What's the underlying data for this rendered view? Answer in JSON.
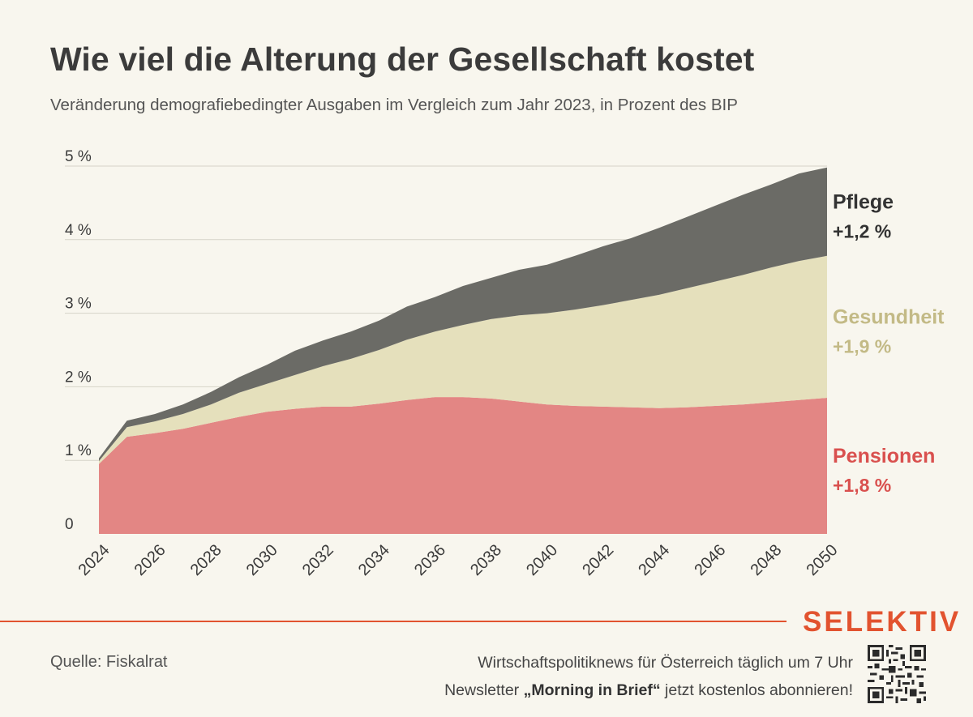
{
  "header": {
    "title": "Wie viel die Alterung der Gesellschaft kostet",
    "subtitle": "Veränderung demografiebedingter Ausgaben im Vergleich zum Jahr 2023, in Prozent des BIP"
  },
  "chart_data": {
    "type": "area",
    "stacked": true,
    "x": [
      2024,
      2025,
      2026,
      2027,
      2028,
      2029,
      2030,
      2031,
      2032,
      2033,
      2034,
      2035,
      2036,
      2037,
      2038,
      2039,
      2040,
      2041,
      2042,
      2043,
      2044,
      2045,
      2046,
      2047,
      2048,
      2049,
      2050
    ],
    "x_ticks": [
      "2024",
      "2026",
      "2028",
      "2030",
      "2032",
      "2034",
      "2036",
      "2038",
      "2040",
      "2042",
      "2044",
      "2046",
      "2048",
      "2050"
    ],
    "y_ticks": [
      "0",
      "1 %",
      "2 %",
      "3 %",
      "4 %",
      "5 %"
    ],
    "ylim": [
      0,
      5
    ],
    "grid": true,
    "series": [
      {
        "name": "Pensionen",
        "color": "#e38684",
        "values": [
          0.95,
          1.32,
          1.37,
          1.43,
          1.51,
          1.59,
          1.66,
          1.7,
          1.73,
          1.73,
          1.77,
          1.82,
          1.86,
          1.86,
          1.84,
          1.8,
          1.76,
          1.74,
          1.73,
          1.72,
          1.71,
          1.72,
          1.74,
          1.76,
          1.79,
          1.82,
          1.85
        ]
      },
      {
        "name": "Gesundheit",
        "color": "#e5e0bc",
        "values": [
          0.04,
          0.13,
          0.16,
          0.2,
          0.25,
          0.33,
          0.38,
          0.46,
          0.55,
          0.65,
          0.73,
          0.82,
          0.89,
          0.98,
          1.08,
          1.17,
          1.24,
          1.31,
          1.38,
          1.46,
          1.54,
          1.62,
          1.69,
          1.76,
          1.83,
          1.89,
          1.93
        ]
      },
      {
        "name": "Pflege",
        "color": "#6b6b66",
        "values": [
          0.04,
          0.09,
          0.1,
          0.13,
          0.17,
          0.21,
          0.26,
          0.33,
          0.35,
          0.37,
          0.4,
          0.45,
          0.47,
          0.53,
          0.56,
          0.62,
          0.66,
          0.73,
          0.8,
          0.84,
          0.91,
          0.97,
          1.03,
          1.09,
          1.13,
          1.19,
          1.2
        ]
      }
    ],
    "annotations": [
      {
        "series": "Pflege",
        "label": "Pflege",
        "value": "+1,2 %",
        "color": "#333333"
      },
      {
        "series": "Gesundheit",
        "label": "Gesundheit",
        "value": "+1,9 %",
        "color": "#c3ba86"
      },
      {
        "series": "Pensionen",
        "label": "Pensionen",
        "value": "+1,8 %",
        "color": "#d9504e"
      }
    ]
  },
  "footer": {
    "brand": "SELEKTIV",
    "source": "Quelle: Fiskalrat",
    "promo_line1": "Wirtschaftspolitiknews für Österreich täglich um 7 Uhr",
    "promo_line2_prefix": "Newsletter ",
    "promo_line2_bold": "„Morning in Brief“",
    "promo_line2_suffix": " jetzt kostenlos abonnieren!"
  }
}
